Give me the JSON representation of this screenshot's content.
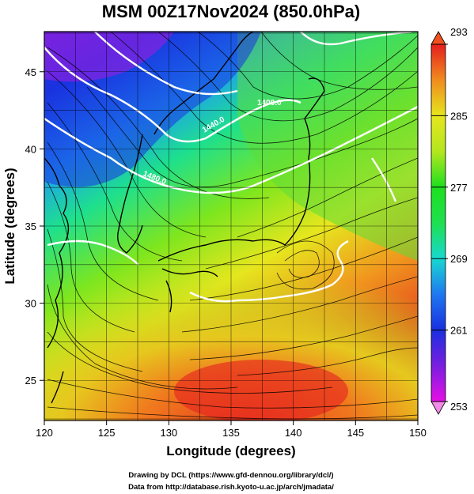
{
  "title": "MSM 00Z17Nov2024 (850.0hPa)",
  "credits": {
    "line1": "Drawing by DCL (https://www.gfd-dennou.org/library/dcl/)",
    "line2": "Data from http://database.rish.kyoto-u.ac.jp/arch/jmadata/"
  },
  "chart_data": {
    "type": "heatmap",
    "title": "MSM 00Z17Nov2024 (850.0hPa)",
    "xlabel": "Longitude (degrees)",
    "ylabel": "Latitude  (degrees)",
    "xlim": [
      120,
      150
    ],
    "ylim": [
      22.4,
      47.6
    ],
    "x_ticks": [
      120,
      125,
      130,
      135,
      140,
      145,
      150
    ],
    "y_ticks": [
      25,
      30,
      35,
      40,
      45
    ],
    "grid": true,
    "colorbar": {
      "range": [
        253,
        293
      ],
      "ticks": [
        253,
        261,
        269,
        277,
        285,
        293
      ],
      "colors": [
        "#e60fe6",
        "#7a1ee0",
        "#1a2fe0",
        "#1ea0f0",
        "#18d8d0",
        "#1ee01e",
        "#b4e61e",
        "#e6e61e",
        "#f0a01e",
        "#f0501e",
        "#e61e1e"
      ]
    },
    "contour_labels": [
      "1480.0",
      "1400.0",
      "1440.0"
    ],
    "overlays": [
      "streamlines (wind)",
      "coastlines",
      "geopotential height contours (white)"
    ]
  }
}
